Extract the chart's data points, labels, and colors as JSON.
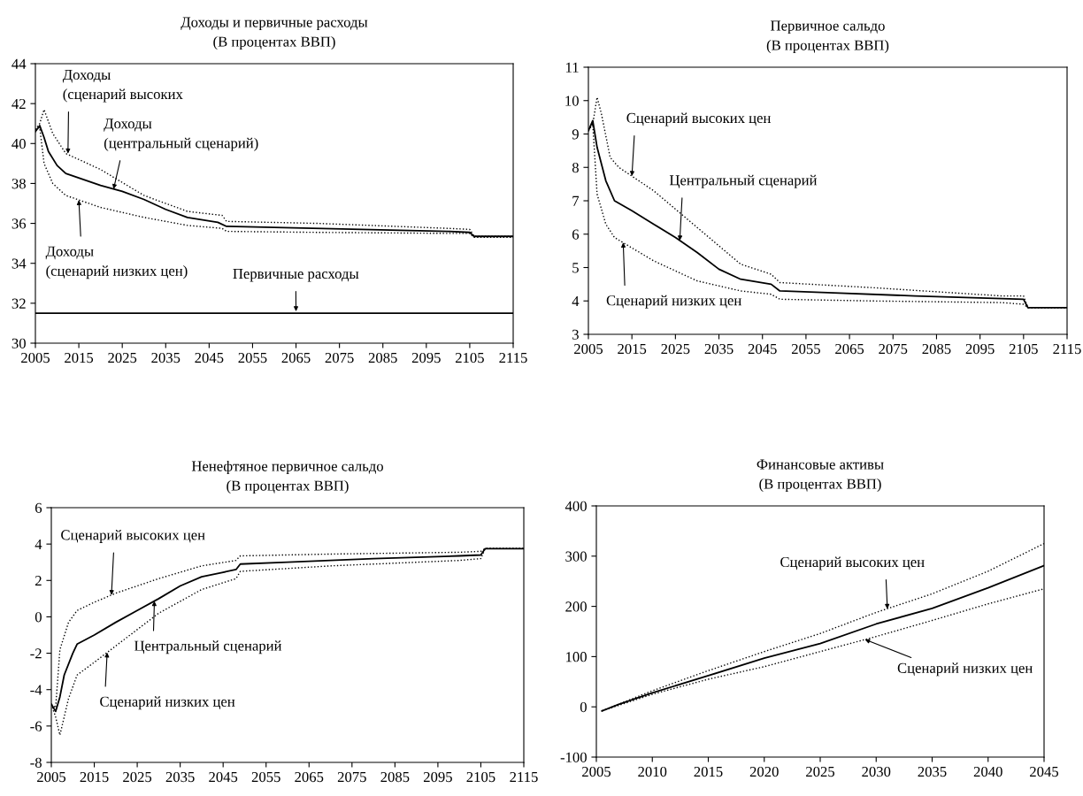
{
  "chart_data": [
    {
      "type": "line",
      "title": "Доходы и первичные расходы",
      "subtitle": "(В процентах ВВП)",
      "xlim": [
        2005,
        2115
      ],
      "xticks": [
        2005,
        2015,
        2025,
        2035,
        2045,
        2055,
        2065,
        2075,
        2085,
        2095,
        2105,
        2115
      ],
      "ylim": [
        30,
        44
      ],
      "yticks": [
        30,
        32,
        34,
        36,
        38,
        40,
        42,
        44
      ],
      "grid": false,
      "legend": false,
      "series": [
        {
          "color": "#000000",
          "line_style": "dotted",
          "x": [
            2005,
            2006,
            2007,
            2009,
            2012,
            2020,
            2030,
            2040,
            2048,
            2049,
            2070,
            2100,
            2105,
            2106,
            2115
          ],
          "values": [
            40.7,
            41.0,
            41.7,
            40.5,
            39.5,
            38.7,
            37.4,
            36.6,
            36.4,
            36.1,
            36.0,
            35.75,
            35.7,
            35.35,
            35.35
          ]
        },
        {
          "color": "#000000",
          "line_style": "solid",
          "x": [
            2005,
            2006,
            2007,
            2008,
            2010,
            2012,
            2020,
            2025,
            2030,
            2035,
            2040,
            2047,
            2049,
            2060,
            2080,
            2100,
            2105,
            2106,
            2115
          ],
          "values": [
            40.6,
            40.9,
            40.3,
            39.6,
            38.9,
            38.5,
            37.9,
            37.6,
            37.2,
            36.7,
            36.3,
            36.05,
            35.85,
            35.8,
            35.7,
            35.6,
            35.55,
            35.35,
            35.35
          ]
        },
        {
          "color": "#000000",
          "line_style": "dotted",
          "x": [
            2005,
            2006,
            2007,
            2009,
            2012,
            2020,
            2030,
            2040,
            2048,
            2049,
            2070,
            2100,
            2105,
            2106,
            2115
          ],
          "values": [
            40.7,
            40.8,
            39.0,
            38.0,
            37.4,
            36.8,
            36.3,
            35.9,
            35.75,
            35.6,
            35.55,
            35.5,
            35.5,
            35.3,
            35.3
          ]
        },
        {
          "color": "#000000",
          "line_style": "solid",
          "x": [
            2005,
            2115
          ],
          "values": [
            31.5,
            31.5
          ]
        }
      ],
      "annotations": [
        {
          "text": "Доходы\n(сценарий высоких",
          "x": 2012.5,
          "y": 39.5
        },
        {
          "text": "Доходы\n(центральный сценарий)",
          "x": 2023,
          "y": 37.72
        },
        {
          "text": "Доходы\n(сценарий низких цен)",
          "x": 2015,
          "y": 37.17
        },
        {
          "text": "Первичные расходы",
          "x": 2065,
          "y": 31.6
        }
      ]
    },
    {
      "type": "line",
      "title": "Первичное сальдо",
      "subtitle": "(В процентах ВВП)",
      "xlim": [
        2005,
        2115
      ],
      "xticks": [
        2005,
        2015,
        2025,
        2035,
        2045,
        2055,
        2065,
        2075,
        2085,
        2095,
        2105,
        2115
      ],
      "ylim": [
        3,
        11
      ],
      "yticks": [
        3,
        4,
        5,
        6,
        7,
        8,
        9,
        10,
        11
      ],
      "grid": false,
      "legend": false,
      "series": [
        {
          "color": "#000000",
          "line_style": "dotted",
          "x": [
            2005,
            2006,
            2007,
            2008,
            2010,
            2012,
            2020,
            2030,
            2040,
            2047,
            2049,
            2070,
            2100,
            2105,
            2106,
            2115
          ],
          "values": [
            9.1,
            9.3,
            10.1,
            9.6,
            8.3,
            8.0,
            7.3,
            6.2,
            5.1,
            4.8,
            4.55,
            4.4,
            4.15,
            4.15,
            3.8,
            3.8
          ]
        },
        {
          "color": "#000000",
          "line_style": "solid",
          "x": [
            2005,
            2006,
            2007,
            2009,
            2011,
            2015,
            2020,
            2025,
            2030,
            2035,
            2040,
            2047,
            2049,
            2060,
            2080,
            2100,
            2105,
            2106,
            2115
          ],
          "values": [
            9.1,
            9.4,
            8.6,
            7.6,
            7.0,
            6.7,
            6.3,
            5.9,
            5.45,
            4.95,
            4.65,
            4.5,
            4.3,
            4.25,
            4.15,
            4.07,
            4.05,
            3.8,
            3.8
          ]
        },
        {
          "color": "#000000",
          "line_style": "dotted",
          "x": [
            2005,
            2006,
            2007,
            2009,
            2011,
            2020,
            2030,
            2040,
            2047,
            2049,
            2070,
            2100,
            2105,
            2106,
            2115
          ],
          "values": [
            9.1,
            9.3,
            7.2,
            6.3,
            5.9,
            5.2,
            4.6,
            4.3,
            4.2,
            4.05,
            4.0,
            3.95,
            3.9,
            3.8,
            3.8
          ]
        }
      ],
      "annotations": [
        {
          "text": "Сценарий высоких цен",
          "x": 2015,
          "y": 7.74
        },
        {
          "text": "Центральный сценарий",
          "x": 2026,
          "y": 5.81
        },
        {
          "text": "Сценарий низких цен",
          "x": 2013,
          "y": 5.75
        }
      ]
    },
    {
      "type": "line",
      "title": "Ненефтяное первичное сальдо",
      "subtitle": "(В процентах ВВП)",
      "xlim": [
        2005,
        2115
      ],
      "xticks": [
        2005,
        2015,
        2025,
        2035,
        2045,
        2055,
        2065,
        2075,
        2085,
        2095,
        2105,
        2115
      ],
      "ylim": [
        -8,
        6
      ],
      "yticks": [
        -8,
        -6,
        -4,
        -2,
        0,
        2,
        4,
        6
      ],
      "grid": false,
      "legend": false,
      "series": [
        {
          "color": "#000000",
          "line_style": "dotted",
          "x": [
            2005,
            2006,
            2007,
            2009,
            2011,
            2015,
            2020,
            2030,
            2040,
            2048,
            2049,
            2070,
            2100,
            2105,
            2106,
            2115
          ],
          "values": [
            -4.8,
            -5.0,
            -1.8,
            -0.3,
            0.35,
            0.8,
            1.3,
            2.1,
            2.8,
            3.1,
            3.35,
            3.45,
            3.55,
            3.6,
            3.75,
            3.75
          ]
        },
        {
          "color": "#000000",
          "line_style": "solid",
          "x": [
            2005,
            2006,
            2007,
            2008,
            2010,
            2011,
            2015,
            2020,
            2025,
            2030,
            2035,
            2040,
            2045,
            2048,
            2049,
            2060,
            2080,
            2100,
            2105,
            2106,
            2115
          ],
          "values": [
            -4.8,
            -5.2,
            -4.4,
            -3.2,
            -2.0,
            -1.5,
            -1.0,
            -0.3,
            0.35,
            1.0,
            1.7,
            2.2,
            2.45,
            2.6,
            2.9,
            3.0,
            3.2,
            3.35,
            3.4,
            3.75,
            3.75
          ]
        },
        {
          "color": "#000000",
          "line_style": "dotted",
          "x": [
            2005,
            2006,
            2007,
            2009,
            2011,
            2015,
            2020,
            2025,
            2030,
            2040,
            2048,
            2049,
            2070,
            2100,
            2105,
            2106,
            2115
          ],
          "values": [
            -4.8,
            -5.5,
            -6.5,
            -4.5,
            -3.2,
            -2.5,
            -1.6,
            -0.7,
            0.2,
            1.5,
            2.1,
            2.5,
            2.8,
            3.1,
            3.2,
            3.75,
            3.75
          ]
        }
      ],
      "annotations": [
        {
          "text": "Сценарий высоких цен",
          "x": 2019,
          "y": 1.2
        },
        {
          "text": "Центральный сценарий",
          "x": 2029,
          "y": 0.87
        },
        {
          "text": "Сценарий низких цен",
          "x": 2018,
          "y": -1.96
        }
      ]
    },
    {
      "type": "line",
      "title": "Финансовые активы",
      "subtitle": "(В процентах ВВП)",
      "xlim": [
        2005,
        2045
      ],
      "xticks": [
        2005,
        2010,
        2015,
        2020,
        2025,
        2030,
        2035,
        2040,
        2045
      ],
      "ylim": [
        -100,
        400
      ],
      "yticks": [
        -100,
        0,
        100,
        200,
        300,
        400
      ],
      "grid": false,
      "legend": false,
      "series": [
        {
          "color": "#000000",
          "line_style": "dotted",
          "x": [
            2005.5,
            2010,
            2015,
            2020,
            2025,
            2030,
            2035,
            2040,
            2045
          ],
          "values": [
            -8,
            32,
            72,
            110,
            146,
            188,
            225,
            270,
            325
          ]
        },
        {
          "color": "#000000",
          "line_style": "solid",
          "x": [
            2005.5,
            2007,
            2010,
            2015,
            2020,
            2025,
            2030,
            2035,
            2040,
            2045
          ],
          "values": [
            -8,
            5,
            28,
            62,
            97,
            126,
            165,
            196,
            237,
            281
          ]
        },
        {
          "color": "#000000",
          "line_style": "dotted",
          "x": [
            2005.5,
            2010,
            2015,
            2020,
            2025,
            2030,
            2035,
            2040,
            2045
          ],
          "values": [
            -8,
            25,
            55,
            80,
            110,
            140,
            172,
            205,
            235
          ]
        }
      ],
      "annotations": [
        {
          "text": "Сценарий высоких цен",
          "x": 2031,
          "y": 195
        },
        {
          "text": "Сценарий низких цен",
          "x": 2029,
          "y": 134
        }
      ]
    }
  ]
}
